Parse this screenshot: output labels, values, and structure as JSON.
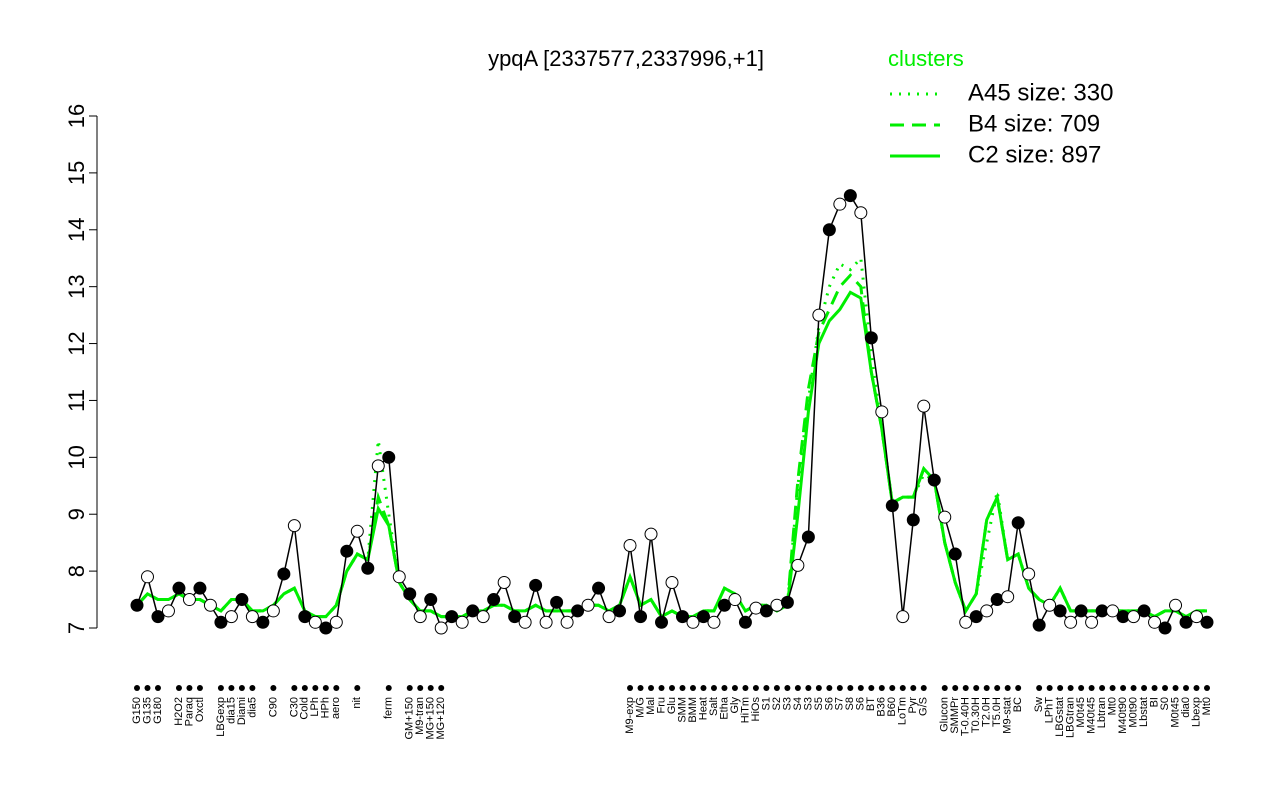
{
  "chart_data": {
    "type": "line",
    "title": "ypqA [2337577,2337996,+1]",
    "legend_title": "clusters",
    "legend_position": "top-right",
    "categories": [
      "G150",
      "G135",
      "G180",
      null,
      "H2O2",
      "Paraq",
      "Oxctl",
      null,
      "LBGexp",
      "dia15",
      "Diami",
      "dia5",
      null,
      "C90",
      null,
      "C30",
      "Cold",
      "LPh",
      "HPh",
      "aero",
      null,
      "nit",
      null,
      null,
      "ferm",
      null,
      "GM+150",
      "M9-tran",
      "MG+150",
      "MG+120",
      null,
      null,
      null,
      null,
      null,
      null,
      null,
      null,
      null,
      null,
      null,
      null,
      null,
      null,
      null,
      null,
      null,
      "M9-exp",
      "M/G",
      "Mal",
      "Fru",
      "Glu",
      "SMM",
      "BMM",
      "Heat",
      "Salt",
      "Etha",
      "Gly",
      "HiTm",
      "HiOs",
      "S1",
      "S2",
      "S3",
      "S4",
      "S3",
      "S5",
      "S6",
      "S7",
      "S8",
      "S6",
      "BT",
      "B36",
      "B60",
      "LoTm",
      "Pyr",
      "G/S",
      null,
      "Glucon",
      "SMMPr",
      "T-0.40H",
      "T0.30H",
      "T2.0H",
      "T5.0H",
      "M9-stat",
      "BC",
      null,
      "Sw",
      "LPhT",
      "LBGstat",
      "LBGtran",
      "M0t45",
      "M40t45",
      "Lbtran",
      "Mt0",
      "M40t90",
      "M0t90",
      "Lbstat",
      "BI",
      "S0",
      "M0t45",
      "dia0",
      "Lbexp",
      "Mt0"
    ],
    "values": [
      7.4,
      7.9,
      7.2,
      7.3,
      7.7,
      7.5,
      7.7,
      7.4,
      7.1,
      7.2,
      7.5,
      7.2,
      7.1,
      7.3,
      7.95,
      8.8,
      7.2,
      7.1,
      7.0,
      7.1,
      8.35,
      8.7,
      8.05,
      9.85,
      10.0,
      7.9,
      7.6,
      7.2,
      7.5,
      7.0,
      7.2,
      7.1,
      7.3,
      7.2,
      7.5,
      7.8,
      7.2,
      7.1,
      7.75,
      7.1,
      7.45,
      7.1,
      7.3,
      7.4,
      7.7,
      7.2,
      7.3,
      8.45,
      7.2,
      8.65,
      7.1,
      7.8,
      7.2,
      7.1,
      7.2,
      7.1,
      7.4,
      7.5,
      7.1,
      7.35,
      7.3,
      7.4,
      7.45,
      8.1,
      8.6,
      12.5,
      14.0,
      14.45,
      14.6,
      14.3,
      12.1,
      10.8,
      9.15,
      7.2,
      8.9,
      10.9,
      9.6,
      8.95,
      8.3,
      7.1,
      7.2,
      7.3,
      7.5,
      7.55,
      8.85,
      7.95,
      7.05,
      7.4,
      7.3,
      7.1,
      7.3,
      7.1,
      7.3,
      7.3,
      7.2,
      7.2,
      7.3,
      7.1,
      7.0,
      7.4,
      7.1,
      7.2,
      7.1
    ],
    "color": "#000000",
    "series": [
      {
        "name": "A45 size: 330",
        "color": "#00ee00",
        "dash": "dotted",
        "values": [
          7.4,
          7.6,
          7.5,
          7.5,
          7.6,
          7.5,
          7.5,
          7.4,
          7.3,
          7.5,
          7.5,
          7.3,
          7.3,
          7.4,
          7.6,
          7.7,
          7.3,
          7.2,
          7.2,
          7.4,
          8.0,
          8.3,
          8.2,
          10.3,
          9.0,
          7.8,
          7.5,
          7.3,
          7.3,
          7.2,
          7.2,
          7.2,
          7.3,
          7.3,
          7.4,
          7.4,
          7.3,
          7.3,
          7.4,
          7.3,
          7.3,
          7.3,
          7.3,
          7.4,
          7.4,
          7.3,
          7.4,
          7.9,
          7.4,
          7.5,
          7.2,
          7.3,
          7.2,
          7.2,
          7.3,
          7.3,
          7.7,
          7.6,
          7.3,
          7.4,
          7.4,
          7.3,
          7.4,
          9.5,
          11.0,
          12.3,
          13.0,
          13.4,
          13.3,
          13.5,
          11.8,
          10.5,
          9.2,
          9.3,
          9.3,
          9.7,
          9.6,
          8.5,
          7.8,
          7.3,
          7.6,
          8.5,
          9.4,
          8.2,
          8.3,
          7.7,
          7.5,
          7.4,
          7.7,
          7.3,
          7.3,
          7.3,
          7.3,
          7.3,
          7.3,
          7.3,
          7.3,
          7.2,
          7.3,
          7.3,
          7.2,
          7.3,
          7.3
        ]
      },
      {
        "name": "B4 size: 709",
        "color": "#00ee00",
        "dash": "dashed",
        "values": [
          7.4,
          7.6,
          7.5,
          7.5,
          7.6,
          7.5,
          7.5,
          7.4,
          7.3,
          7.5,
          7.5,
          7.3,
          7.3,
          7.4,
          7.6,
          7.7,
          7.3,
          7.2,
          7.2,
          7.4,
          8.0,
          8.3,
          8.2,
          9.3,
          8.8,
          7.8,
          7.5,
          7.3,
          7.3,
          7.2,
          7.2,
          7.2,
          7.3,
          7.3,
          7.4,
          7.4,
          7.3,
          7.3,
          7.4,
          7.3,
          7.3,
          7.3,
          7.3,
          7.4,
          7.4,
          7.3,
          7.4,
          7.9,
          7.4,
          7.5,
          7.2,
          7.3,
          7.2,
          7.2,
          7.3,
          7.3,
          7.7,
          7.6,
          7.3,
          7.4,
          7.4,
          7.3,
          7.4,
          9.6,
          11.2,
          12.2,
          12.6,
          13.0,
          13.2,
          13.0,
          11.5,
          10.5,
          9.2,
          9.3,
          9.3,
          9.8,
          9.6,
          8.5,
          7.8,
          7.3,
          7.6,
          8.9,
          9.3,
          8.2,
          8.3,
          7.7,
          7.5,
          7.4,
          7.7,
          7.3,
          7.3,
          7.3,
          7.3,
          7.3,
          7.3,
          7.3,
          7.3,
          7.2,
          7.3,
          7.3,
          7.2,
          7.3,
          7.3
        ]
      },
      {
        "name": "C2 size: 897",
        "color": "#00ee00",
        "dash": "solid",
        "values": [
          7.4,
          7.6,
          7.5,
          7.5,
          7.6,
          7.5,
          7.5,
          7.4,
          7.3,
          7.5,
          7.5,
          7.3,
          7.3,
          7.4,
          7.6,
          7.7,
          7.3,
          7.2,
          7.2,
          7.4,
          8.0,
          8.3,
          8.2,
          9.1,
          8.8,
          7.8,
          7.5,
          7.3,
          7.3,
          7.2,
          7.2,
          7.2,
          7.3,
          7.3,
          7.4,
          7.4,
          7.3,
          7.3,
          7.4,
          7.3,
          7.3,
          7.3,
          7.3,
          7.4,
          7.4,
          7.3,
          7.4,
          7.9,
          7.4,
          7.5,
          7.2,
          7.3,
          7.2,
          7.2,
          7.3,
          7.3,
          7.7,
          7.6,
          7.3,
          7.4,
          7.4,
          7.3,
          7.4,
          9.0,
          10.8,
          12.0,
          12.4,
          12.6,
          12.9,
          12.8,
          11.5,
          10.5,
          9.2,
          9.3,
          9.3,
          9.8,
          9.6,
          8.5,
          7.8,
          7.3,
          7.6,
          8.9,
          9.3,
          8.2,
          8.3,
          7.7,
          7.5,
          7.4,
          7.7,
          7.3,
          7.3,
          7.3,
          7.3,
          7.3,
          7.3,
          7.3,
          7.3,
          7.2,
          7.3,
          7.3,
          7.2,
          7.3,
          7.3
        ]
      }
    ],
    "ylim": [
      7,
      16
    ],
    "yticks": [
      7,
      8,
      9,
      10,
      11,
      12,
      13,
      14,
      15,
      16
    ]
  }
}
